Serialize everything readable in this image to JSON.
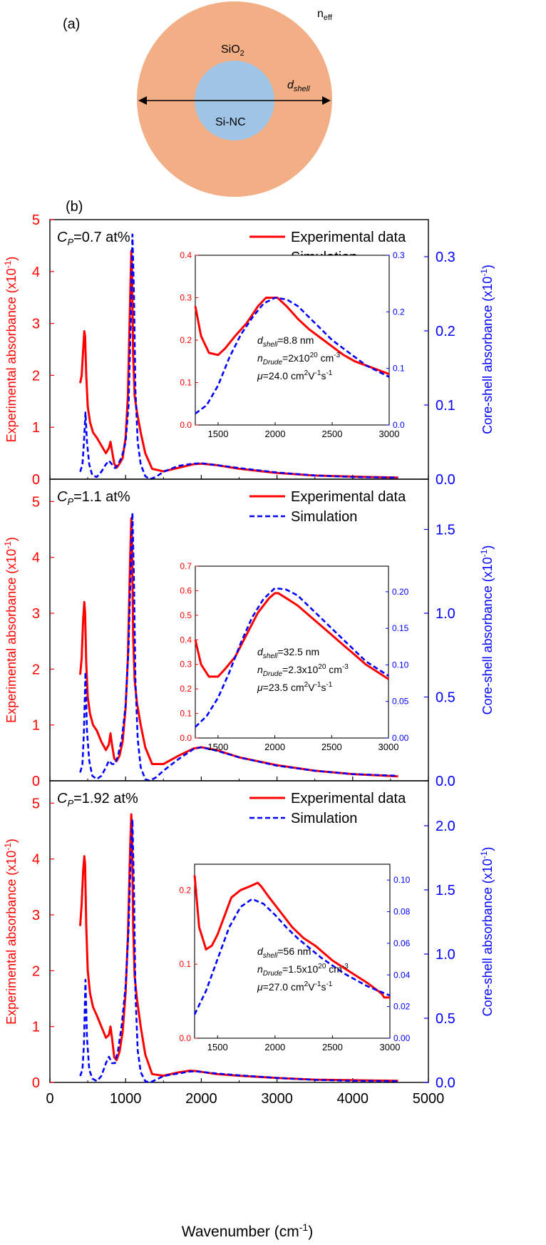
{
  "figure": {
    "panel_a": {
      "label": "(a)",
      "medium_label": "n",
      "medium_sub": "eff",
      "shell_label": "SiO",
      "shell_sub": "2",
      "core_label": "Si-NC",
      "dim_label": "d",
      "dim_sub": "shell",
      "colors": {
        "shell": "#F2AE84",
        "core": "#9FC4E6",
        "arrow": "#000000"
      }
    },
    "panel_b": {
      "label": "(b)"
    },
    "shared": {
      "xlabel": "Wavenumber (cm",
      "xlabel_sup": "-1",
      "xlabel_end": ")",
      "xlim": [
        0,
        5000
      ],
      "xticks": [
        "0",
        "1000",
        "2000",
        "3000",
        "4000",
        "5000"
      ],
      "ylabel_left": "Experimental absorbance (x10",
      "ylabel_right": "Core-shell absorbance (x10",
      "ylabel_sup": "-1",
      "ylabel_end": ")",
      "legend": [
        "Experimental data",
        "Simulation"
      ],
      "colors": {
        "experimental": "#FF0000",
        "simulation": "#0000FF"
      }
    }
  },
  "chart_data": [
    {
      "type": "line",
      "cp_label": "=0.7 at%",
      "ylim": [
        0,
        5
      ],
      "yticks": [
        "0",
        "1",
        "2",
        "3",
        "4",
        "5"
      ],
      "y2lim": [
        0,
        0.35
      ],
      "y2ticks": [
        "0.0",
        "0.1",
        "0.2",
        "0.3"
      ],
      "series": [
        {
          "name": "Experimental data",
          "axis": "left",
          "x": [
            400,
            420,
            440,
            455,
            465,
            480,
            500,
            530,
            570,
            620,
            680,
            740,
            780,
            800,
            820,
            850,
            880,
            920,
            960,
            1000,
            1030,
            1060,
            1075,
            1085,
            1100,
            1120,
            1150,
            1200,
            1260,
            1350,
            1500,
            1700,
            1900,
            2000,
            2200,
            2500,
            3000,
            3500,
            4000,
            4600
          ],
          "y": [
            1.85,
            2.0,
            2.5,
            2.85,
            2.75,
            2.0,
            1.4,
            1.1,
            0.9,
            0.8,
            0.65,
            0.5,
            0.6,
            0.72,
            0.55,
            0.3,
            0.22,
            0.3,
            0.4,
            0.8,
            1.6,
            3.5,
            4.4,
            4.0,
            2.4,
            1.6,
            1.3,
            0.9,
            0.5,
            0.2,
            0.15,
            0.22,
            0.29,
            0.3,
            0.27,
            0.2,
            0.12,
            0.07,
            0.05,
            0.03
          ]
        },
        {
          "name": "Simulation",
          "axis": "right",
          "x": [
            400,
            430,
            450,
            470,
            490,
            520,
            560,
            620,
            680,
            740,
            780,
            820,
            860,
            900,
            950,
            1000,
            1040,
            1070,
            1090,
            1110,
            1130,
            1160,
            1200,
            1260,
            1320,
            1400,
            1500,
            1700,
            1900,
            2000,
            2200,
            2500,
            3000,
            3500,
            4000,
            4600
          ],
          "y": [
            0.01,
            0.02,
            0.05,
            0.09,
            0.05,
            0.02,
            0.005,
            0.003,
            0.01,
            0.02,
            0.025,
            0.02,
            0.015,
            0.02,
            0.03,
            0.05,
            0.1,
            0.22,
            0.33,
            0.25,
            0.12,
            0.05,
            0.02,
            0.004,
            0.0,
            0.003,
            0.01,
            0.018,
            0.021,
            0.0215,
            0.019,
            0.015,
            0.009,
            0.005,
            0.003,
            0.002
          ]
        }
      ],
      "inset": {
        "xlim": [
          1300,
          3000
        ],
        "xticks": [
          "1500",
          "2000",
          "2500",
          "3000"
        ],
        "ylim": [
          0,
          0.4
        ],
        "yticks": [
          "0.0",
          "0.1",
          "0.2",
          "0.3",
          "0.4"
        ],
        "y2lim": [
          0,
          0.3
        ],
        "y2ticks": [
          "0.0",
          "0.1",
          "0.2",
          "0.3"
        ],
        "notes": [
          [
            "d",
            "shell",
            "=8.8 nm"
          ],
          [
            "n",
            "Drude",
            "=2x10",
            "20",
            " cm",
            "-3"
          ],
          [
            "μ",
            "",
            "=24.0 cm",
            "2",
            "V",
            "-1",
            "s",
            "-1"
          ]
        ],
        "series": [
          {
            "name": "Experimental data",
            "axis": "left",
            "x": [
              1300,
              1350,
              1420,
              1500,
              1560,
              1650,
              1750,
              1850,
              1920,
              1980,
              2020,
              2100,
              2200,
              2300,
              2400,
              2500,
              2600,
              2700,
              2800,
              2900,
              3000
            ],
            "y": [
              0.28,
              0.21,
              0.17,
              0.165,
              0.18,
              0.21,
              0.24,
              0.28,
              0.3,
              0.3,
              0.3,
              0.28,
              0.25,
              0.225,
              0.205,
              0.185,
              0.165,
              0.15,
              0.14,
              0.13,
              0.12
            ]
          },
          {
            "name": "Simulation",
            "axis": "right",
            "x": [
              1300,
              1400,
              1500,
              1600,
              1700,
              1800,
              1900,
              2000,
              2100,
              2200,
              2300,
              2400,
              2500,
              2600,
              2700,
              2800,
              2900,
              3000
            ],
            "y": [
              0.02,
              0.035,
              0.07,
              0.12,
              0.16,
              0.19,
              0.215,
              0.225,
              0.222,
              0.21,
              0.19,
              0.17,
              0.15,
              0.135,
              0.12,
              0.105,
              0.095,
              0.085
            ]
          }
        ]
      }
    },
    {
      "type": "line",
      "cp_label": "=1.1 at%",
      "ylim": [
        0,
        5.4
      ],
      "yticks": [
        "0",
        "1",
        "2",
        "3",
        "4",
        "5"
      ],
      "y2lim": [
        0,
        1.8
      ],
      "y2ticks": [
        "0.0",
        "0.5",
        "1.0",
        "1.5"
      ],
      "series": [
        {
          "name": "Experimental data",
          "axis": "left",
          "x": [
            400,
            420,
            440,
            455,
            465,
            480,
            500,
            530,
            570,
            620,
            680,
            740,
            780,
            800,
            820,
            850,
            880,
            920,
            960,
            1000,
            1030,
            1060,
            1075,
            1085,
            1100,
            1120,
            1150,
            1200,
            1260,
            1350,
            1500,
            1700,
            1900,
            2000,
            2200,
            2500,
            3000,
            3500,
            4000,
            4600
          ],
          "y": [
            1.9,
            2.2,
            2.9,
            3.2,
            3.0,
            2.1,
            1.5,
            1.2,
            1.0,
            0.9,
            0.7,
            0.55,
            0.65,
            0.85,
            0.65,
            0.4,
            0.35,
            0.45,
            0.7,
            1.3,
            2.2,
            4.0,
            4.7,
            4.3,
            2.6,
            1.8,
            1.4,
            1.0,
            0.6,
            0.3,
            0.3,
            0.45,
            0.58,
            0.6,
            0.55,
            0.42,
            0.28,
            0.18,
            0.12,
            0.08
          ]
        },
        {
          "name": "Simulation",
          "axis": "right",
          "x": [
            400,
            430,
            450,
            470,
            490,
            520,
            560,
            620,
            680,
            740,
            780,
            820,
            860,
            900,
            950,
            1000,
            1040,
            1070,
            1090,
            1110,
            1130,
            1160,
            1200,
            1260,
            1320,
            1400,
            1500,
            1700,
            1900,
            2000,
            2200,
            2500,
            3000,
            3500,
            4000,
            4600
          ],
          "y": [
            0.05,
            0.1,
            0.3,
            0.65,
            0.3,
            0.12,
            0.03,
            0.01,
            0.03,
            0.08,
            0.12,
            0.1,
            0.1,
            0.15,
            0.25,
            0.45,
            0.8,
            1.3,
            1.6,
            1.2,
            0.6,
            0.25,
            0.08,
            0.01,
            0.0,
            0.02,
            0.06,
            0.13,
            0.19,
            0.2,
            0.18,
            0.14,
            0.09,
            0.06,
            0.04,
            0.03
          ]
        }
      ],
      "inset": {
        "xlim": [
          1300,
          3000
        ],
        "xticks": [
          "1500",
          "2000",
          "2500",
          "3000"
        ],
        "ylim": [
          0,
          0.7
        ],
        "yticks": [
          "0.0",
          "0.1",
          "0.2",
          "0.3",
          "0.4",
          "0.5",
          "0.6",
          "0.7"
        ],
        "y2lim": [
          0,
          0.235
        ],
        "y2ticks": [
          "0.00",
          "0.05",
          "0.10",
          "0.15",
          "0.20"
        ],
        "notes": [
          [
            "d",
            "shell",
            "=32.5 nm"
          ],
          [
            "n",
            "Drude",
            "=2.3x10",
            "20",
            " cm",
            "-3"
          ],
          [
            "μ",
            "",
            "=23.5 cm",
            "2",
            "V",
            "-1",
            "s",
            "-1"
          ]
        ],
        "series": [
          {
            "name": "Experimental data",
            "axis": "left",
            "x": [
              1300,
              1350,
              1420,
              1500,
              1560,
              1650,
              1750,
              1850,
              1950,
              2000,
              2030,
              2100,
              2200,
              2300,
              2400,
              2500,
              2600,
              2700,
              2800,
              2900,
              3000
            ],
            "y": [
              0.4,
              0.3,
              0.25,
              0.25,
              0.28,
              0.33,
              0.42,
              0.51,
              0.57,
              0.59,
              0.59,
              0.57,
              0.54,
              0.5,
              0.46,
              0.42,
              0.38,
              0.34,
              0.3,
              0.27,
              0.24
            ]
          },
          {
            "name": "Simulation",
            "axis": "right",
            "x": [
              1300,
              1400,
              1500,
              1600,
              1700,
              1800,
              1900,
              2000,
              2100,
              2200,
              2300,
              2400,
              2500,
              2600,
              2700,
              2800,
              2900,
              3000
            ],
            "y": [
              0.015,
              0.03,
              0.055,
              0.09,
              0.13,
              0.165,
              0.19,
              0.205,
              0.203,
              0.195,
              0.18,
              0.165,
              0.15,
              0.135,
              0.12,
              0.105,
              0.095,
              0.085
            ]
          }
        ]
      }
    },
    {
      "type": "line",
      "cp_label": "=1.92 at%",
      "ylim": [
        0,
        5.4
      ],
      "yticks": [
        "0",
        "1",
        "2",
        "3",
        "4",
        "5"
      ],
      "y2lim": [
        0,
        2.35
      ],
      "y2ticks": [
        "0.0",
        "0.5",
        "1.0",
        "1.5",
        "2.0"
      ],
      "series": [
        {
          "name": "Experimental data",
          "axis": "left",
          "x": [
            400,
            420,
            440,
            455,
            465,
            480,
            500,
            530,
            570,
            620,
            680,
            740,
            780,
            800,
            820,
            850,
            880,
            920,
            960,
            1000,
            1030,
            1060,
            1075,
            1085,
            1100,
            1120,
            1150,
            1200,
            1260,
            1350,
            1500,
            1700,
            1850,
            1950,
            2200,
            2500,
            3000,
            3500,
            4000,
            4600
          ],
          "y": [
            2.8,
            3.2,
            3.8,
            4.05,
            3.9,
            2.8,
            2.0,
            1.6,
            1.35,
            1.2,
            1.0,
            0.8,
            0.85,
            1.0,
            0.8,
            0.45,
            0.4,
            0.55,
            0.9,
            1.6,
            2.6,
            4.2,
            4.8,
            4.5,
            2.8,
            1.9,
            1.5,
            1.0,
            0.5,
            0.15,
            0.12,
            0.18,
            0.21,
            0.2,
            0.15,
            0.12,
            0.08,
            0.05,
            0.04,
            0.03
          ]
        },
        {
          "name": "Simulation",
          "axis": "right",
          "x": [
            400,
            430,
            450,
            470,
            490,
            520,
            560,
            620,
            680,
            740,
            780,
            820,
            860,
            900,
            950,
            1000,
            1040,
            1070,
            1090,
            1110,
            1130,
            1160,
            1200,
            1260,
            1320,
            1400,
            1500,
            1700,
            1850,
            1950,
            2200,
            2500,
            3000,
            3500,
            4000,
            4600
          ],
          "y": [
            0.05,
            0.1,
            0.3,
            0.8,
            0.35,
            0.1,
            0.03,
            0.01,
            0.05,
            0.15,
            0.2,
            0.15,
            0.15,
            0.25,
            0.45,
            0.75,
            1.2,
            1.8,
            2.05,
            1.5,
            0.7,
            0.25,
            0.08,
            0.01,
            0.0,
            0.02,
            0.05,
            0.07,
            0.085,
            0.085,
            0.07,
            0.055,
            0.035,
            0.02,
            0.012,
            0.01
          ]
        }
      ],
      "inset": {
        "xlim": [
          1300,
          3000
        ],
        "xticks": [
          "1500",
          "2000",
          "2500",
          "3000"
        ],
        "ylim": [
          0,
          0.235
        ],
        "yticks": [
          "0.0",
          "0.1",
          "0.2"
        ],
        "y2lim": [
          0,
          0.11
        ],
        "y2ticks": [
          "0.00",
          "0.02",
          "0.04",
          "0.06",
          "0.08",
          "0.10"
        ],
        "notes": [
          [
            "d",
            "shell",
            "=56 nm"
          ],
          [
            "n",
            "Drude",
            "=1.5x10",
            "20",
            " cm",
            "-3"
          ],
          [
            "μ",
            "",
            "=27.0 cm",
            "2",
            "V",
            "-1",
            "s",
            "-1"
          ]
        ],
        "series": [
          {
            "name": "Experimental data",
            "axis": "left",
            "x": [
              1300,
              1340,
              1400,
              1450,
              1500,
              1560,
              1620,
              1700,
              1780,
              1850,
              1880,
              1950,
              2050,
              2150,
              2250,
              2350,
              2500,
              2650,
              2800,
              2930,
              2950,
              3000
            ],
            "y": [
              0.22,
              0.15,
              0.12,
              0.125,
              0.14,
              0.165,
              0.19,
              0.2,
              0.205,
              0.21,
              0.205,
              0.19,
              0.17,
              0.15,
              0.135,
              0.125,
              0.105,
              0.09,
              0.075,
              0.06,
              0.055,
              0.055
            ]
          },
          {
            "name": "Simulation",
            "axis": "right",
            "x": [
              1300,
              1400,
              1500,
              1600,
              1700,
              1800,
              1900,
              2000,
              2100,
              2200,
              2300,
              2400,
              2500,
              2600,
              2700,
              2800,
              2900,
              3000
            ],
            "y": [
              0.015,
              0.03,
              0.05,
              0.07,
              0.083,
              0.088,
              0.085,
              0.078,
              0.07,
              0.063,
              0.057,
              0.051,
              0.046,
              0.041,
              0.037,
              0.033,
              0.03,
              0.027
            ]
          }
        ]
      }
    }
  ]
}
